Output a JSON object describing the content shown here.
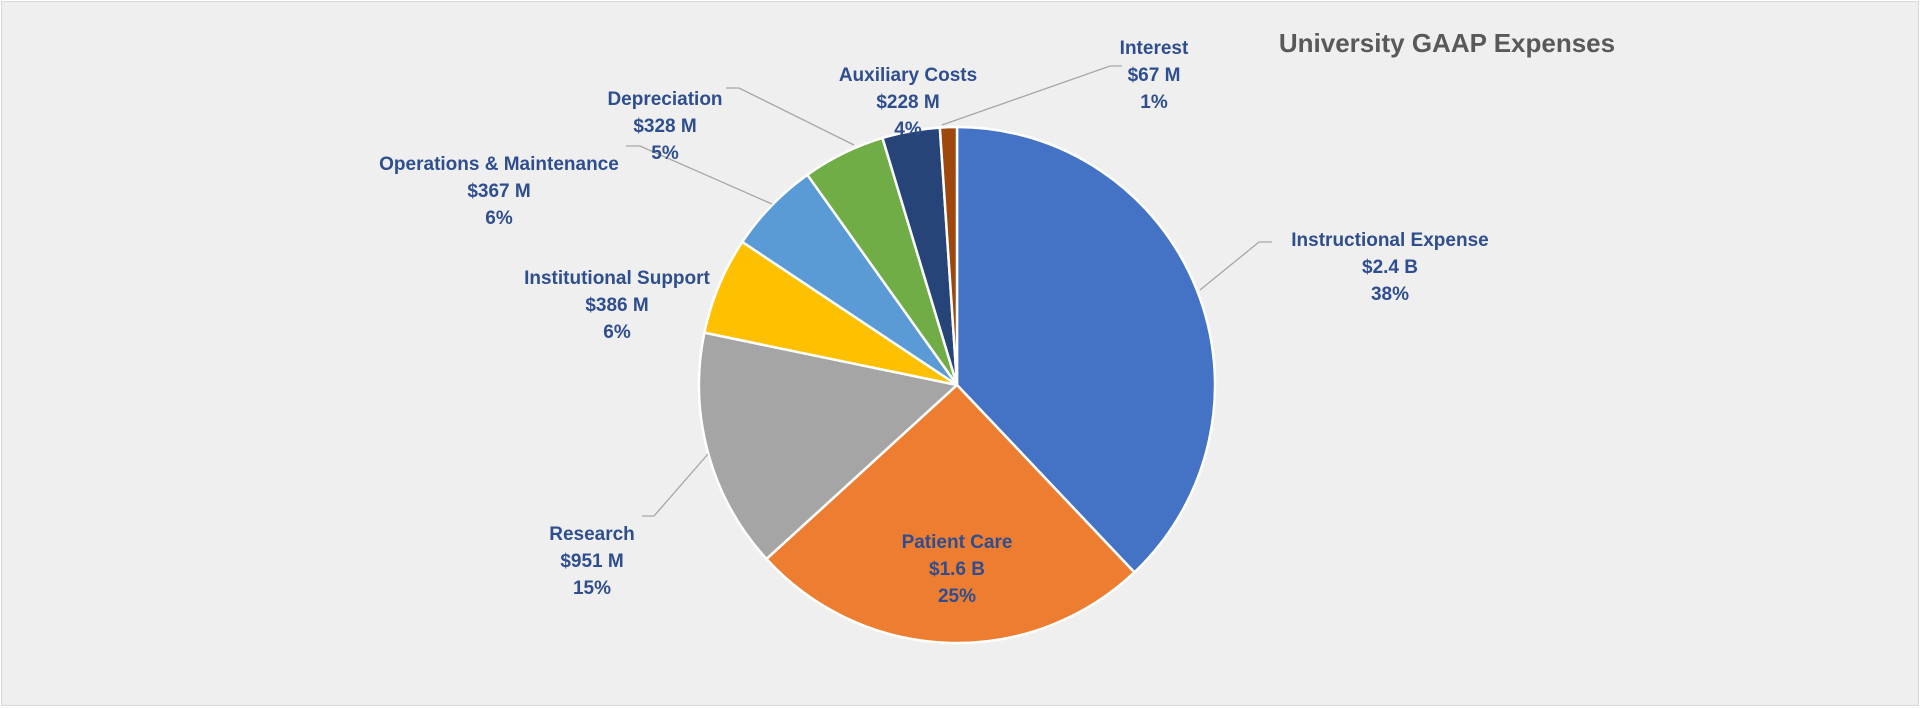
{
  "chart_data": {
    "type": "pie",
    "title": "University GAAP Expenses",
    "start_angle_deg": 0,
    "direction": "clockwise",
    "slices": [
      {
        "category": "Instructional Expense",
        "value_label": "$2.4 B",
        "percent_label": "38%",
        "value": 2400,
        "color": "#4472c4"
      },
      {
        "category": "Patient Care",
        "value_label": "$1.6 B",
        "percent_label": "25%",
        "value": 1600,
        "color": "#ed7d31"
      },
      {
        "category": "Research",
        "value_label": "$951 M",
        "percent_label": "15%",
        "value": 951,
        "color": "#a5a5a5"
      },
      {
        "category": "Institutional Support",
        "value_label": "$386 M",
        "percent_label": "6%",
        "value": 386,
        "color": "#ffc000"
      },
      {
        "category": "Operations & Maintenance",
        "value_label": "$367 M",
        "percent_label": "6%",
        "value": 367,
        "color": "#5b9bd5"
      },
      {
        "category": "Depreciation",
        "value_label": "$328 M",
        "percent_label": "5%",
        "value": 328,
        "color": "#70ad47"
      },
      {
        "category": "Auxiliary Costs",
        "value_label": "$228 M",
        "percent_label": "4%",
        "value": 228,
        "color": "#264478"
      },
      {
        "category": "Interest",
        "value_label": "$67 M",
        "percent_label": "1%",
        "value": 67,
        "color": "#9e480e"
      }
    ]
  }
}
